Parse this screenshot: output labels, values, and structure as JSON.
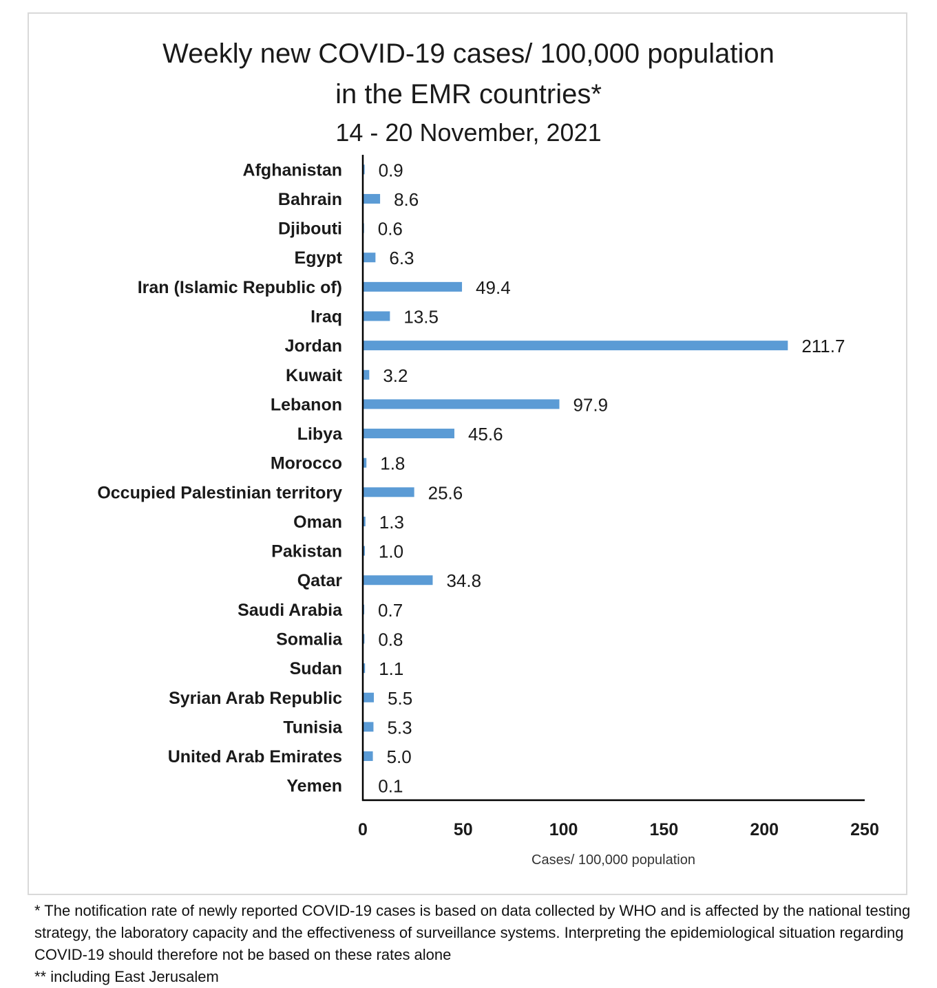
{
  "chart_data": {
    "type": "bar",
    "orientation": "horizontal",
    "title": "Weekly new COVID-19 cases/ 100,000 population",
    "title_line2": "in the EMR countries*",
    "subtitle": "14 - 20 November, 2021",
    "xlabel": "Cases/ 100,000 population",
    "ylabel": "",
    "xlim": [
      0,
      250
    ],
    "xticks": [
      "0",
      "50",
      "100",
      "150",
      "200",
      "250"
    ],
    "bar_color": "#5b9bd5",
    "categories": [
      "Afghanistan",
      "Bahrain",
      "Djibouti",
      "Egypt",
      "Iran (Islamic Republic of)",
      "Iraq",
      "Jordan",
      "Kuwait",
      "Lebanon",
      "Libya",
      "Morocco",
      "Occupied Palestinian territory",
      "Oman",
      "Pakistan",
      "Qatar",
      "Saudi Arabia",
      "Somalia",
      "Sudan",
      "Syrian Arab Republic",
      "Tunisia",
      "United Arab Emirates",
      "Yemen"
    ],
    "values": [
      0.9,
      8.6,
      0.6,
      6.3,
      49.4,
      13.5,
      211.7,
      3.2,
      97.9,
      45.6,
      1.8,
      25.6,
      1.3,
      1.0,
      34.8,
      0.7,
      0.8,
      1.1,
      5.5,
      5.3,
      5.0,
      0.1
    ],
    "value_labels": [
      "0.9",
      "8.6",
      "0.6",
      "6.3",
      "49.4",
      "13.5",
      "211.7",
      "3.2",
      "97.9",
      "45.6",
      "1.8",
      "25.6",
      "1.3",
      "1.0",
      "34.8",
      "0.7",
      "0.8",
      "1.1",
      "5.5",
      "5.3",
      "5.0",
      "0.1"
    ],
    "grid": false,
    "legend": "none"
  },
  "footnote": {
    "line1": "* The notification rate of newly reported COVID-19 cases is based on data collected by WHO and is affected by the national testing strategy, the laboratory capacity and the effectiveness of surveillance systems. Interpreting the epidemiological situation regarding COVID-19 should therefore not be based on these rates alone",
    "line2": "** including East Jerusalem"
  }
}
